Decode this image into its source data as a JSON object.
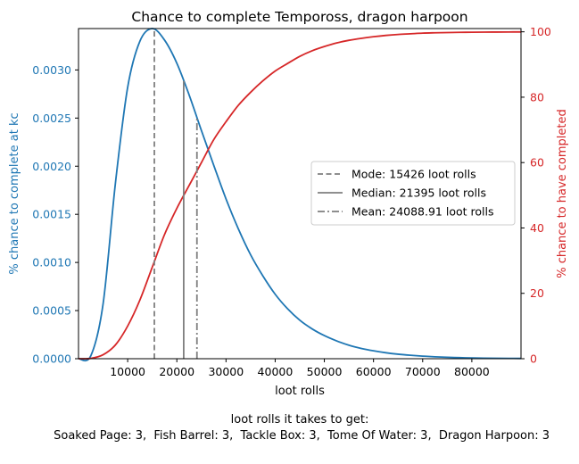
{
  "chart_data": {
    "type": "line",
    "title": "Chance to complete Tempoross, dragon harpoon",
    "xlabel": "loot rolls",
    "ylabel_left": "% chance to complete at kc",
    "ylabel_right": "% chance to have completed",
    "xlim": [
      0,
      90000
    ],
    "ylim_left": [
      0,
      0.00343
    ],
    "ylim_right": [
      0,
      101
    ],
    "x_ticks": [
      10000,
      20000,
      30000,
      40000,
      50000,
      60000,
      70000,
      80000
    ],
    "x_tick_labels": [
      "10000",
      "20000",
      "30000",
      "40000",
      "50000",
      "60000",
      "70000",
      "80000"
    ],
    "y_left_ticks": [
      0,
      0.0005,
      0.001,
      0.0015,
      0.002,
      0.0025,
      0.003
    ],
    "y_left_tick_labels": [
      "0.0000",
      "0.0005",
      "0.0010",
      "0.0015",
      "0.0020",
      "0.0025",
      "0.0030"
    ],
    "y_right_ticks": [
      0,
      20,
      40,
      60,
      80,
      100
    ],
    "y_right_tick_labels": [
      "0",
      "20",
      "40",
      "60",
      "80",
      "100"
    ],
    "grid": false,
    "legend_position": "center-right",
    "colors": {
      "pdf": "#1f77b4",
      "cdf": "#d62728",
      "markers": "#7f7f7f"
    },
    "series": [
      {
        "axis": "left",
        "x": [
          0,
          2500,
          5000,
          7500,
          10000,
          12500,
          15000,
          17500,
          20000,
          22500,
          25000,
          27500,
          30000,
          32500,
          35000,
          37500,
          40000,
          42500,
          45000,
          47500,
          50000,
          52500,
          55000,
          57500,
          60000,
          62500,
          65000,
          67500,
          70000,
          72500,
          75000,
          77500,
          80000,
          82500,
          85000,
          87500,
          90000
        ],
        "values": [
          0,
          3e-05,
          0.00057,
          0.00182,
          0.00282,
          0.0033,
          0.00343,
          0.00331,
          0.00307,
          0.00274,
          0.00237,
          0.00201,
          0.00166,
          0.00135,
          0.00108,
          0.00086,
          0.00067,
          0.00052,
          0.0004,
          0.00031,
          0.00024,
          0.000185,
          0.00014,
          0.000107,
          8.2e-05,
          6.2e-05,
          4.7e-05,
          3.6e-05,
          2.7e-05,
          2e-05,
          1.5e-05,
          1.1e-05,
          8e-06,
          6e-06,
          4.5e-06,
          3.5e-06,
          3e-06
        ]
      },
      {
        "axis": "right",
        "x": [
          0,
          2500,
          5000,
          7500,
          10000,
          12500,
          15000,
          17500,
          20000,
          22500,
          25000,
          27500,
          30000,
          32500,
          35000,
          37500,
          40000,
          42500,
          45000,
          47500,
          50000,
          52500,
          55000,
          57500,
          60000,
          62500,
          65000,
          67500,
          70000,
          72500,
          75000,
          77500,
          80000,
          82500,
          85000,
          87500,
          90000
        ],
        "values": [
          0,
          0.1,
          1.2,
          4.2,
          10,
          18,
          28,
          38,
          46,
          53,
          60,
          67,
          72.5,
          77.5,
          81.5,
          85,
          88,
          90.3,
          92.5,
          94.2,
          95.5,
          96.6,
          97.4,
          98,
          98.5,
          98.9,
          99.2,
          99.4,
          99.6,
          99.7,
          99.78,
          99.84,
          99.88,
          99.91,
          99.93,
          99.95,
          99.96
        ]
      }
    ],
    "markers": [
      {
        "label": "Mode: 15426 loot rolls",
        "x": 15426,
        "style": "dashed"
      },
      {
        "label": "Median: 21395 loot rolls",
        "x": 21395,
        "style": "solid"
      },
      {
        "label": "Mean: 24088.91 loot rolls",
        "x": 24088.91,
        "style": "dashdot"
      }
    ],
    "footer": {
      "line1": "loot rolls it takes to get:",
      "line2": " Soaked Page: 3,  Fish Barrel: 3,  Tackle Box: 3,  Tome Of Water: 3,  Dragon Harpoon: 3"
    }
  }
}
